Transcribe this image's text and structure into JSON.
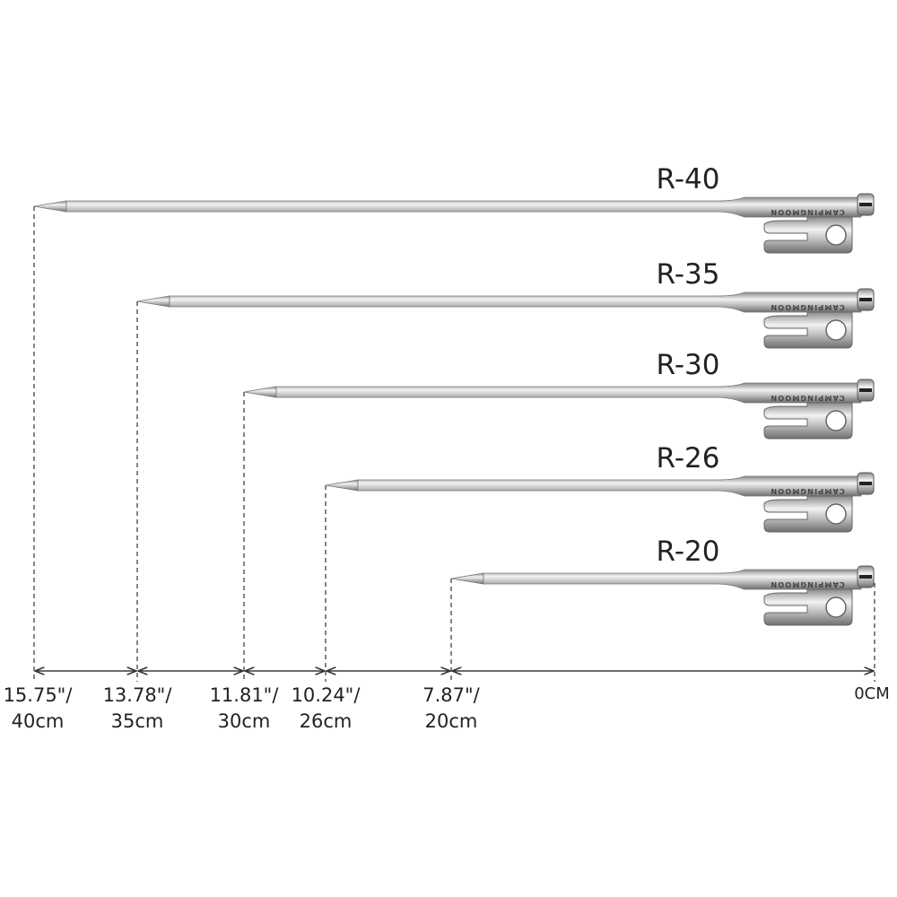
{
  "brand": "CAMPINGMOON",
  "stakes": [
    {
      "model": "R-40"
    },
    {
      "model": "R-35"
    },
    {
      "model": "R-30"
    },
    {
      "model": "R-26"
    },
    {
      "model": "R-20"
    }
  ],
  "measures": [
    {
      "inch": "15.75\"/",
      "cm": "40cm"
    },
    {
      "inch": "13.78\"/",
      "cm": "35cm"
    },
    {
      "inch": "11.81\"/",
      "cm": "30cm"
    },
    {
      "inch": "10.24\"/",
      "cm": "26cm"
    },
    {
      "inch": "7.87\"/",
      "cm": "20cm"
    }
  ],
  "zero_label": "0CM"
}
